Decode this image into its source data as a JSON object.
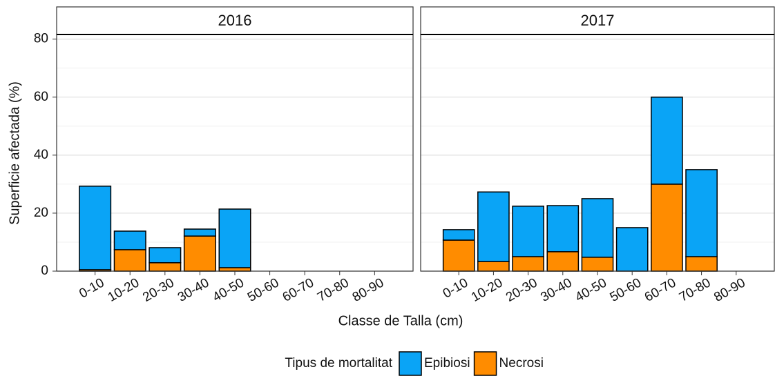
{
  "chart_data": {
    "type": "bar",
    "stacked": true,
    "ylabel": "Superficie afectada (%)",
    "xlabel": "Classe de Talla (cm)",
    "legend_title": "Tipus de mortalitat",
    "legend_position": "bottom",
    "grid": true,
    "ylim": [
      0,
      81.6
    ],
    "yticks": [
      0,
      20,
      40,
      60,
      80
    ],
    "categories": [
      "0-10",
      "10-20",
      "20-30",
      "30-40",
      "40-50",
      "50-60",
      "60-70",
      "70-80",
      "80-90"
    ],
    "series": [
      {
        "name": "Epibiosi",
        "color": "#0aa4f6"
      },
      {
        "name": "Necrosi",
        "color": "#ff8c00"
      }
    ],
    "panels": [
      {
        "title": "2016",
        "series": [
          {
            "values": [
              28.8,
              6.4,
              5.2,
              2.4,
              20.2,
              null,
              null,
              null,
              null
            ]
          },
          {
            "values": [
              0.5,
              7.4,
              2.9,
              12.1,
              1.2,
              null,
              null,
              null,
              null
            ]
          }
        ]
      },
      {
        "title": "2017",
        "series": [
          {
            "values": [
              3.6,
              24.0,
              17.4,
              15.9,
              20.2,
              15.0,
              30.0,
              30.0,
              null
            ]
          },
          {
            "values": [
              10.7,
              3.3,
              5.0,
              6.7,
              4.8,
              null,
              30.0,
              5.0,
              null
            ]
          }
        ]
      }
    ]
  }
}
